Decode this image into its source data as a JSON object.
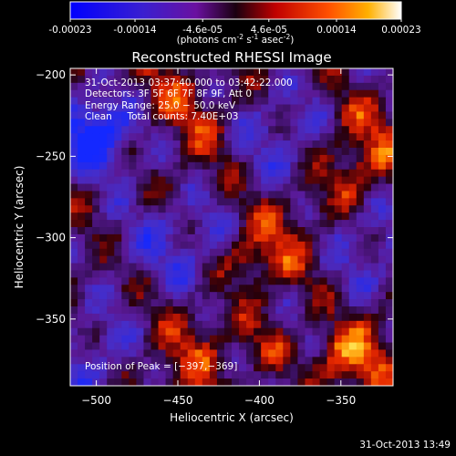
{
  "colorbar": {
    "ticks": [
      "-0.00023",
      "-0.00014",
      "-4.6e-05",
      "4.6e-05",
      "0.00014",
      "0.00023"
    ],
    "tick_values": [
      -0.00023,
      -0.00014,
      -4.6e-05,
      4.6e-05,
      0.00014,
      0.00023
    ],
    "range": [
      -0.00023,
      0.00023
    ],
    "units_main": "(photons cm",
    "units_e1": "-2",
    "units_mid": " s",
    "units_e2": "-1",
    "units_end": " asec",
    "units_e3": "-2",
    "units_close": ")"
  },
  "chart_data": {
    "type": "heatmap",
    "title": "Reconstructed RHESSI Image",
    "xlabel": "Heliocentric X (arcsec)",
    "ylabel": "Heliocentric Y (arcsec)",
    "xlim": [
      -516,
      -318
    ],
    "ylim": [
      -391,
      -196
    ],
    "x_ticks": [
      -500,
      -450,
      -400,
      -350
    ],
    "x_tick_labels": [
      "−500",
      "−450",
      "−400",
      "−350"
    ],
    "y_ticks": [
      -200,
      -250,
      -300,
      -350
    ],
    "y_tick_labels": [
      "−200",
      "−250",
      "−300",
      "−350"
    ],
    "grid": false,
    "peak": {
      "x": -397,
      "y": -369
    }
  },
  "info": {
    "time_range": "31-Oct-2013 03:37:40.000 to 03:42:22.000",
    "detectors": "Detectors: 3F 5F 6F 7F 8F 9F, Att 0",
    "energy": "Energy Range: 25.0 − 50.0 keV",
    "clean": "Clean     Total counts: 7.40E+03",
    "peak_label": "Position of Peak = [−397,−369]"
  },
  "timestamp": "31-Oct-2013 13:49",
  "colors": {
    "background": "#000000",
    "frame": "#ffffff"
  }
}
